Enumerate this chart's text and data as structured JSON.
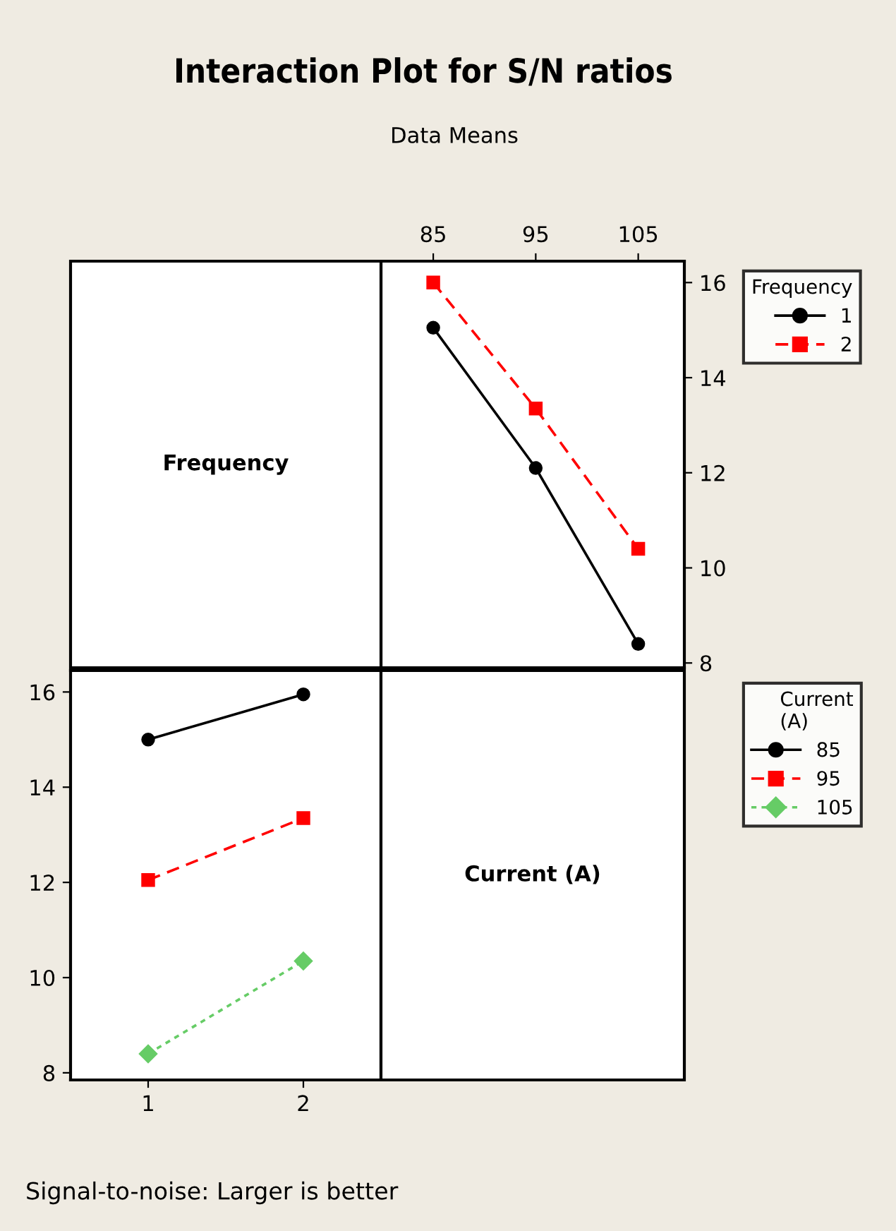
{
  "chart_data": [
    {
      "type": "other",
      "title": "Interaction Plot for S/N ratios",
      "subtitle": "Data Means",
      "annotations": [
        "Signal-to-noise: Larger is better"
      ]
    },
    {
      "type": "other",
      "title": "Frequency"
    },
    {
      "type": "line",
      "legend_title": "Frequency",
      "legend": "right",
      "xlim": [
        79.9,
        109.5
      ],
      "xticks": [
        85,
        95,
        105
      ],
      "ylim": [
        7.9,
        16.45
      ],
      "yticks": [
        8,
        10,
        12,
        14,
        16
      ],
      "series": [
        {
          "name": "1",
          "color": "#000000",
          "marker": "circle",
          "line_style": "solid",
          "x": [
            85,
            95,
            105
          ],
          "values": [
            15.05,
            12.1,
            8.4
          ]
        },
        {
          "name": "2",
          "color": "#ff0000",
          "marker": "square",
          "line_style": "dashed",
          "x": [
            85,
            95,
            105
          ],
          "values": [
            16.0,
            13.35,
            10.4
          ]
        }
      ]
    },
    {
      "type": "line",
      "legend_title": "Current\n(A)",
      "legend": "right",
      "xlim": [
        0.5,
        2.5
      ],
      "xticks": [
        1,
        2
      ],
      "ylim": [
        7.85,
        16.45
      ],
      "yticks": [
        8,
        10,
        12,
        14,
        16
      ],
      "series": [
        {
          "name": "85",
          "color": "#000000",
          "marker": "circle",
          "line_style": "solid",
          "x": [
            1,
            2
          ],
          "values": [
            15.0,
            15.95
          ]
        },
        {
          "name": "95",
          "color": "#ff0000",
          "marker": "square",
          "line_style": "dashed",
          "x": [
            1,
            2
          ],
          "values": [
            12.05,
            13.35
          ]
        },
        {
          "name": "105",
          "color": "#66cc66",
          "marker": "diamond",
          "line_style": "dotted",
          "x": [
            1,
            2
          ],
          "values": [
            8.4,
            10.35
          ]
        }
      ]
    },
    {
      "type": "other",
      "title": "Current (A)"
    }
  ]
}
